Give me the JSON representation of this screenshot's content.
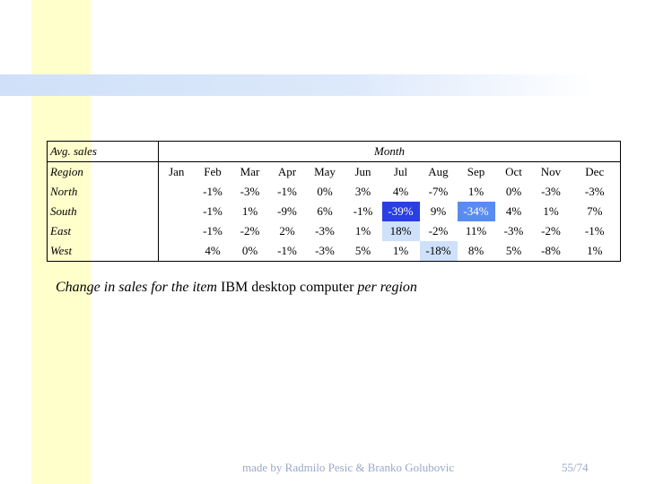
{
  "table": {
    "corner": "Avg. sales",
    "group": "Month",
    "row_header": "Region",
    "columns": [
      "Jan",
      "Feb",
      "Mar",
      "Apr",
      "May",
      "Jun",
      "Jul",
      "Aug",
      "Sep",
      "Oct",
      "Nov",
      "Dec"
    ],
    "rows": [
      {
        "region": "North",
        "cells": [
          null,
          "-1%",
          "-3%",
          "-1%",
          "0%",
          "3%",
          "4%",
          "-7%",
          "1%",
          "0%",
          "-3%",
          "-3%"
        ]
      },
      {
        "region": "South",
        "cells": [
          null,
          "-1%",
          "1%",
          "-9%",
          "6%",
          "-1%",
          "-39%",
          "9%",
          "-34%",
          "4%",
          "1%",
          "7%"
        ]
      },
      {
        "region": "East",
        "cells": [
          null,
          "-1%",
          "-2%",
          "2%",
          "-3%",
          "1%",
          "18%",
          "-2%",
          "11%",
          "-3%",
          "-2%",
          "-1%"
        ]
      },
      {
        "region": "West",
        "cells": [
          null,
          "4%",
          "0%",
          "-1%",
          "-3%",
          "5%",
          "1%",
          "-18%",
          "8%",
          "5%",
          "-8%",
          "1%"
        ]
      }
    ]
  },
  "caption": {
    "lead": "Change in sales for the item",
    "item": "IBM desktop computer",
    "tail": "per region"
  },
  "footer": {
    "credit": "made by Radmilo Pesic & Branko Golubovic",
    "page": "55/74"
  }
}
